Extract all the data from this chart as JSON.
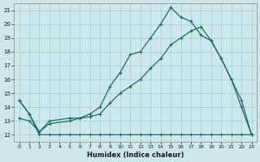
{
  "xlabel": "Humidex (Indice chaleur)",
  "bg_color": "#cde8e8",
  "grid_color": "#a8cccc",
  "line_color": "#1a6b6b",
  "xlim": [
    -0.5,
    23.5
  ],
  "ylim": [
    11.5,
    21.5
  ],
  "xticks": [
    0,
    1,
    2,
    3,
    4,
    5,
    6,
    7,
    8,
    9,
    10,
    11,
    12,
    13,
    14,
    15,
    16,
    17,
    18,
    19,
    20,
    21,
    22,
    23
  ],
  "yticks": [
    12,
    13,
    14,
    15,
    16,
    17,
    18,
    19,
    20,
    21
  ],
  "series_flat": {
    "x": [
      0,
      1,
      2,
      3,
      4,
      5,
      6,
      7,
      8,
      9,
      10,
      11,
      12,
      13,
      14,
      15,
      16,
      17,
      18,
      19,
      20,
      21,
      22,
      23
    ],
    "y": [
      14.5,
      13.5,
      12.0,
      12.0,
      12.0,
      12.0,
      12.0,
      12.0,
      12.0,
      12.0,
      12.0,
      12.0,
      12.0,
      12.0,
      12.0,
      12.0,
      12.0,
      12.0,
      12.0,
      12.0,
      12.0,
      12.0,
      12.0,
      12.0
    ]
  },
  "series_zigzag": {
    "x": [
      0,
      1,
      2,
      3,
      5,
      6,
      7,
      8,
      9,
      10,
      11,
      12,
      13,
      14,
      15,
      16,
      17,
      18,
      19,
      20,
      21,
      22,
      23
    ],
    "y": [
      14.5,
      13.5,
      12.2,
      13.0,
      13.2,
      13.2,
      13.5,
      14.0,
      15.5,
      16.5,
      17.8,
      18.0,
      19.0,
      20.0,
      21.2,
      20.5,
      20.2,
      19.2,
      18.8,
      17.5,
      16.0,
      14.0,
      12.0
    ]
  },
  "series_linear": {
    "x": [
      0,
      1,
      2,
      3,
      5,
      6,
      7,
      8,
      9,
      10,
      11,
      12,
      13,
      14,
      15,
      16,
      17,
      18,
      19,
      20,
      21,
      22,
      23
    ],
    "y": [
      13.2,
      13.0,
      12.2,
      12.8,
      13.0,
      13.2,
      13.3,
      13.5,
      14.3,
      15.0,
      15.5,
      16.0,
      16.8,
      17.5,
      18.5,
      19.0,
      19.5,
      19.8,
      18.8,
      17.5,
      16.0,
      14.5,
      12.0
    ]
  }
}
